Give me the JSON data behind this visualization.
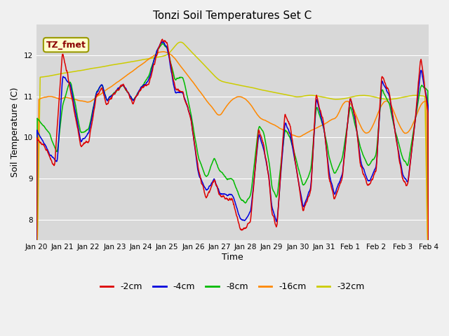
{
  "title": "Tonzi Soil Temperatures Set C",
  "xlabel": "Time",
  "ylabel": "Soil Temperature (C)",
  "ylim": [
    7.5,
    12.75
  ],
  "annotation": "TZ_fmet",
  "background_color": "#f0f0f0",
  "plot_bg_color": "#d8d8d8",
  "legend_labels": [
    "-2cm",
    "-4cm",
    "-8cm",
    "-16cm",
    "-32cm"
  ],
  "line_colors": [
    "#dd0000",
    "#0000dd",
    "#00bb00",
    "#ff8800",
    "#cccc00"
  ],
  "x_tick_labels": [
    "Jan 20",
    "Jan 21",
    "Jan 22",
    "Jan 23",
    "Jan 24",
    "Jan 25",
    "Jan 26",
    "Jan 27",
    "Jan 28",
    "Jan 29",
    "Jan 30",
    "Jan 31",
    "Feb 1",
    "Feb 2",
    "Feb 3",
    "Feb 4"
  ],
  "figsize": [
    6.4,
    4.8
  ],
  "dpi": 100
}
